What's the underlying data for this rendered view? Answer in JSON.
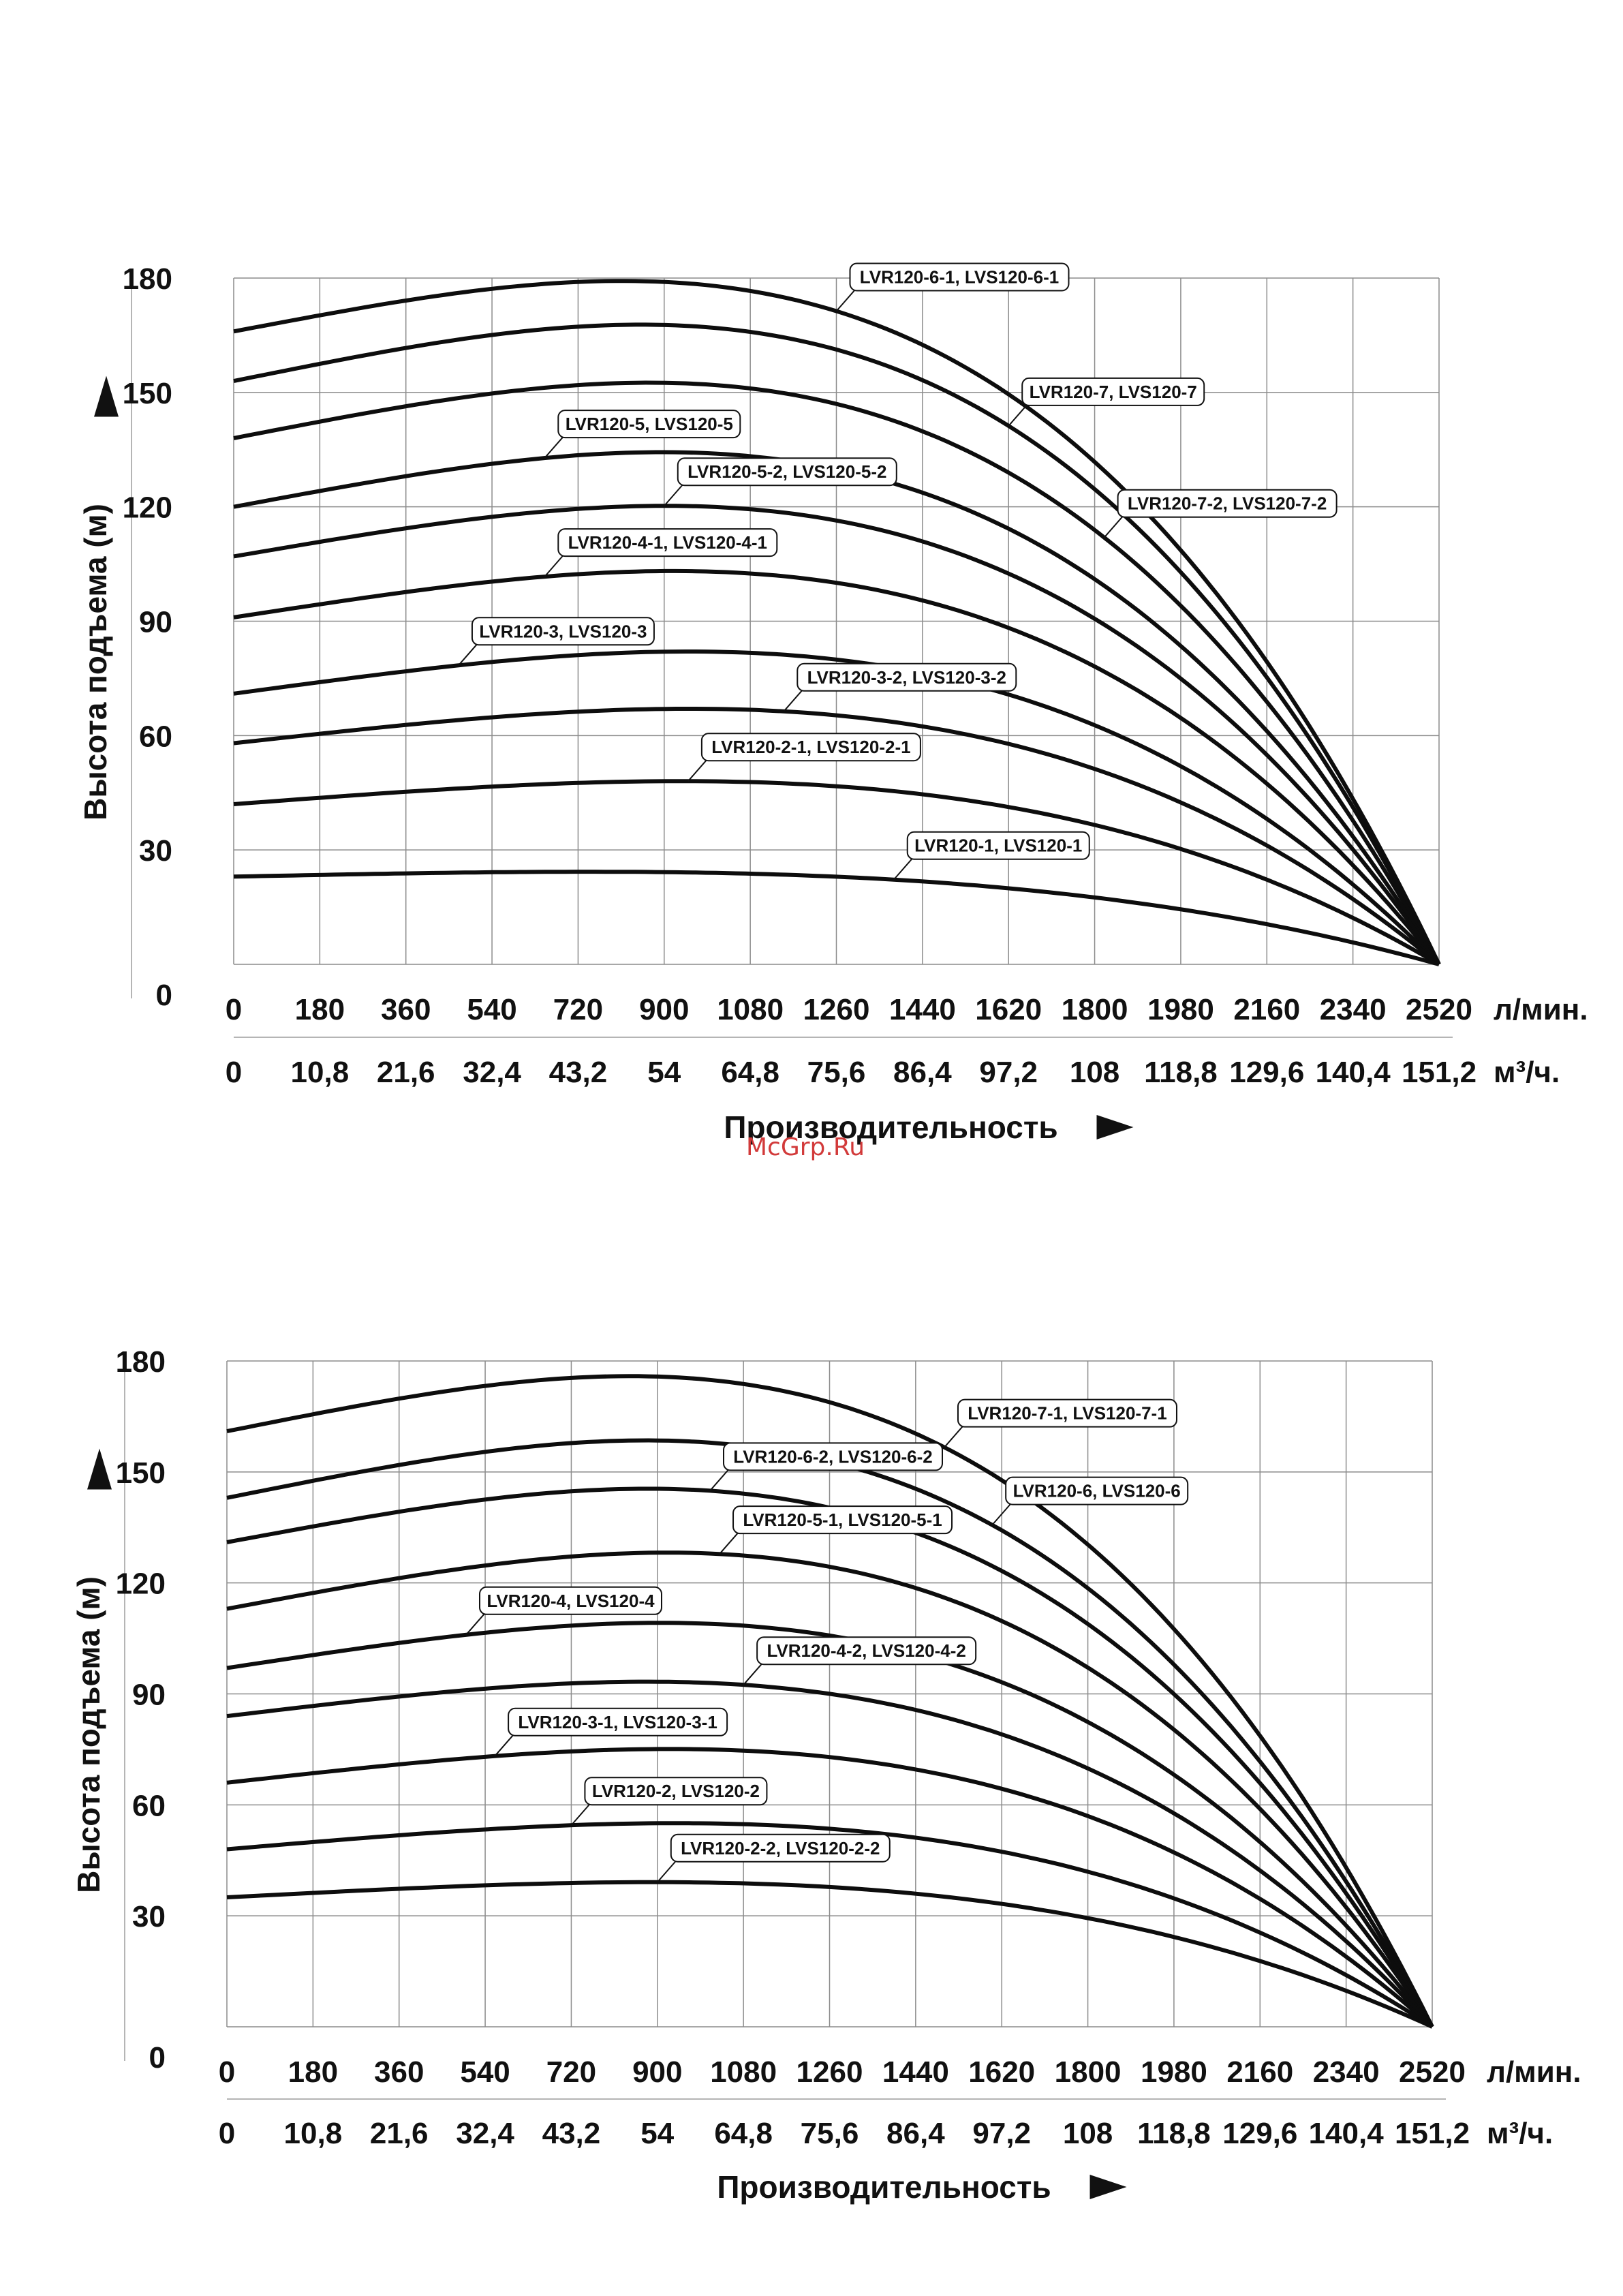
{
  "watermark": "McGrp.Ru",
  "chart_data": [
    {
      "type": "line",
      "xlabel": "Производительность",
      "ylabel": "Высота подъема (м)",
      "x_unit_primary": "л/мин.",
      "x_unit_secondary": "м³/ч.",
      "x_ticks_primary": [
        "0",
        "180",
        "360",
        "540",
        "720",
        "900",
        "1080",
        "1260",
        "1440",
        "1620",
        "1800",
        "1980",
        "2160",
        "2340",
        "2520"
      ],
      "x_ticks_secondary": [
        "0",
        "10,8",
        "21,6",
        "32,4",
        "43,2",
        "54",
        "64,8",
        "75,6",
        "86,4",
        "97,2",
        "108",
        "118,8",
        "129,6",
        "140,4",
        "151,2"
      ],
      "y_ticks": [
        "0",
        "30",
        "60",
        "90",
        "120",
        "150",
        "180"
      ],
      "xlim": [
        0,
        2520
      ],
      "ylim": [
        0,
        180
      ],
      "grid": true,
      "series": [
        {
          "name": "LVR120-6-1, LVS120-6-1",
          "shutoff": 166,
          "peak": 178,
          "label_at": 1260
        },
        {
          "name": "LVR120-7, LVS120-7",
          "shutoff": 153,
          "peak": 167,
          "label_at": 1620
        },
        {
          "name": "LVR120-7-2, LVS120-7-2",
          "shutoff": 138,
          "peak": 152,
          "label_at": 1820
        },
        {
          "name": "LVR120-5, LVS120-5",
          "shutoff": 120,
          "peak": 134,
          "label_at": 650
        },
        {
          "name": "LVR120-5-2, LVS120-5-2",
          "shutoff": 107,
          "peak": 120,
          "label_at": 900
        },
        {
          "name": "LVR120-4-1, LVS120-4-1",
          "shutoff": 91,
          "peak": 103,
          "label_at": 650
        },
        {
          "name": "LVR120-3, LVS120-3",
          "shutoff": 71,
          "peak": 82,
          "label_at": 470
        },
        {
          "name": "LVR120-3-2, LVS120-3-2",
          "shutoff": 58,
          "peak": 67,
          "label_at": 1150
        },
        {
          "name": "LVR120-2-1, LVS120-2-1",
          "shutoff": 42,
          "peak": 48,
          "label_at": 950
        },
        {
          "name": "LVR120-1, LVS120-1",
          "shutoff": 23,
          "peak": 24,
          "label_at": 1380
        }
      ]
    },
    {
      "type": "line",
      "xlabel": "Производительность",
      "ylabel": "Высота подъема (м)",
      "x_unit_primary": "л/мин.",
      "x_unit_secondary": "м³/ч.",
      "x_ticks_primary": [
        "0",
        "180",
        "360",
        "540",
        "720",
        "900",
        "1080",
        "1260",
        "1440",
        "1620",
        "1800",
        "1980",
        "2160",
        "2340",
        "2520"
      ],
      "x_ticks_secondary": [
        "0",
        "10,8",
        "21,6",
        "32,4",
        "43,2",
        "54",
        "64,8",
        "75,6",
        "86,4",
        "97,2",
        "108",
        "118,8",
        "129,6",
        "140,4",
        "151,2"
      ],
      "y_ticks": [
        "0",
        "30",
        "60",
        "90",
        "120",
        "150",
        "180"
      ],
      "xlim": [
        0,
        2520
      ],
      "ylim": [
        0,
        180
      ],
      "grid": true,
      "series": [
        {
          "name": "LVR120-7-1, LVS120-7-1",
          "shutoff": 161,
          "peak": 175,
          "label_at": 1500
        },
        {
          "name": "LVR120-6, LVS120-6",
          "shutoff": 143,
          "peak": 158,
          "label_at": 1600
        },
        {
          "name": "LVR120-6-2, LVS120-6-2",
          "shutoff": 131,
          "peak": 145,
          "label_at": 1010
        },
        {
          "name": "LVR120-5-1, LVS120-5-1",
          "shutoff": 113,
          "peak": 128,
          "label_at": 1030
        },
        {
          "name": "LVR120-4, LVS120-4",
          "shutoff": 97,
          "peak": 109,
          "label_at": 500
        },
        {
          "name": "LVR120-4-2, LVS120-4-2",
          "shutoff": 84,
          "peak": 93,
          "label_at": 1080
        },
        {
          "name": "LVR120-3-1, LVS120-3-1",
          "shutoff": 66,
          "peak": 75,
          "label_at": 560
        },
        {
          "name": "LVR120-2, LVS120-2",
          "shutoff": 48,
          "peak": 55,
          "label_at": 720
        },
        {
          "name": "LVR120-2-2, LVS120-2-2",
          "shutoff": 35,
          "peak": 39,
          "label_at": 900
        }
      ]
    }
  ]
}
